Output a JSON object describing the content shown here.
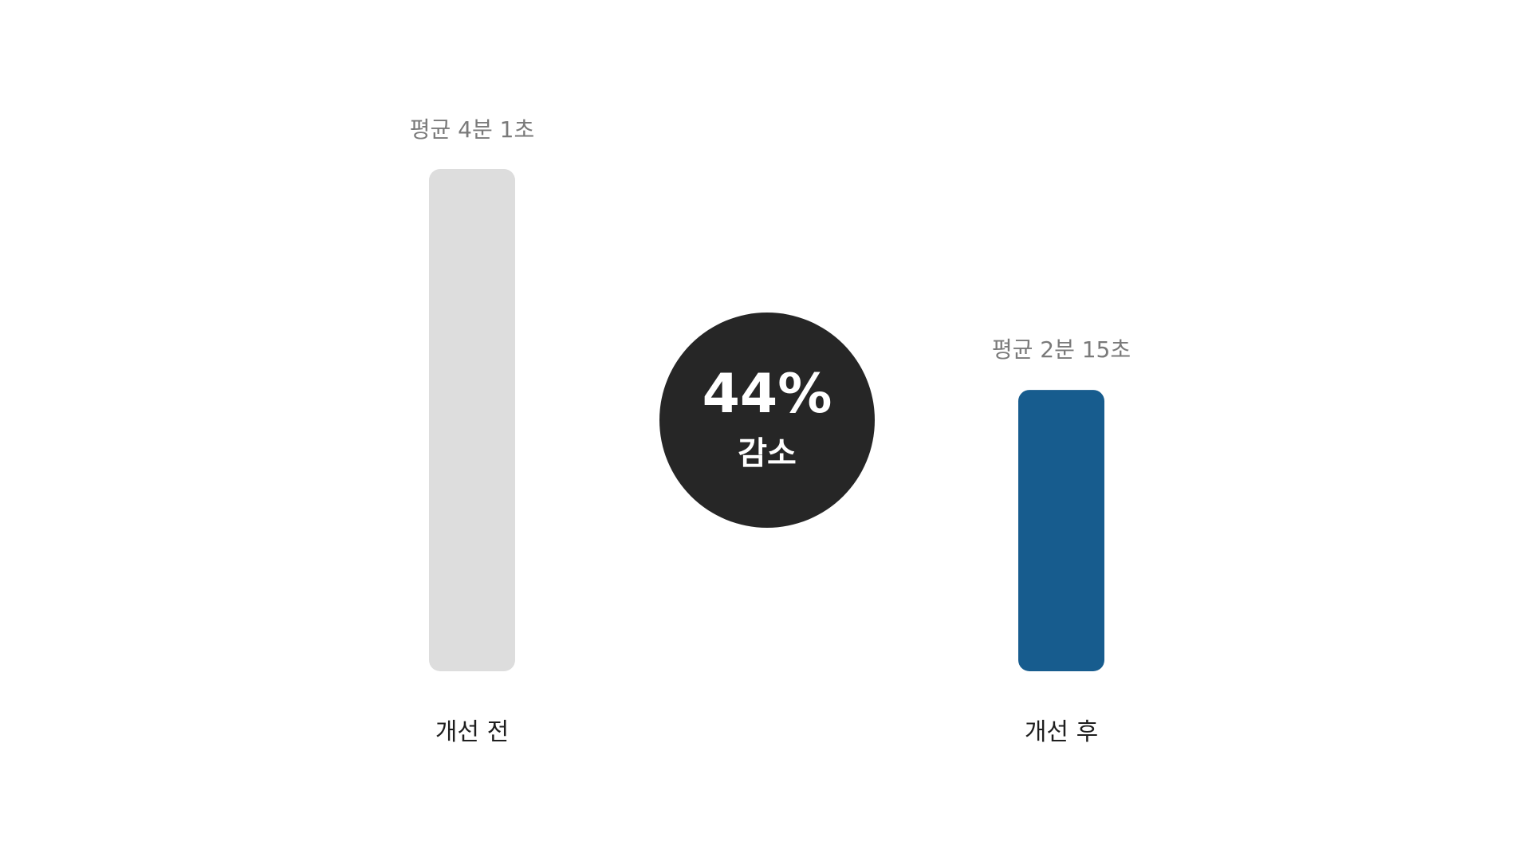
{
  "chart_data": {
    "type": "bar",
    "categories": [
      "개선 전",
      "개선 후"
    ],
    "values": [
      241,
      135
    ],
    "value_unit": "seconds",
    "data_labels": [
      "평균 4분 1초",
      "평균 2분 15초"
    ],
    "ylim": [
      0,
      241
    ],
    "grid": false,
    "legend": "none",
    "annotation": {
      "value": "44%",
      "caption": "감소"
    },
    "colors": {
      "bar_before": "#dddddd",
      "bar_after": "#175c8e",
      "badge": "#262626"
    }
  }
}
